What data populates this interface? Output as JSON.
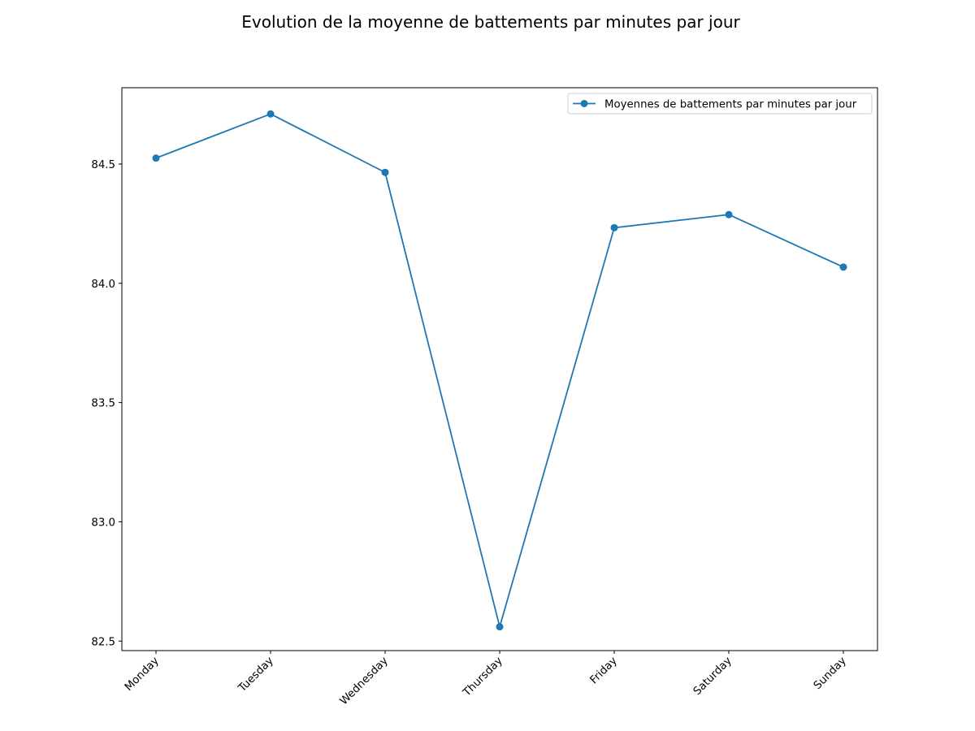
{
  "chart_data": {
    "type": "line",
    "title": "Evolution de la moyenne de battements par minutes par jour",
    "xlabel": "",
    "ylabel": "",
    "categories": [
      "Monday",
      "Tuesday",
      "Wednesday",
      "Thursday",
      "Friday",
      "Saturday",
      "Sunday"
    ],
    "series": [
      {
        "name": "Moyennes de battements par minutes par jour",
        "values": [
          84.525,
          84.71,
          84.465,
          82.56,
          84.233,
          84.288,
          84.068
        ],
        "color": "#1f77b4",
        "marker": "circle"
      }
    ],
    "ylim": [
      82.46,
      84.82
    ],
    "yticks": [
      82.5,
      83.0,
      83.5,
      84.0,
      84.5
    ],
    "ytick_labels": [
      "82.5",
      "83.0",
      "83.5",
      "84.0",
      "84.5"
    ],
    "xtick_rotation": 45,
    "grid": false,
    "legend_position": "top-right"
  }
}
